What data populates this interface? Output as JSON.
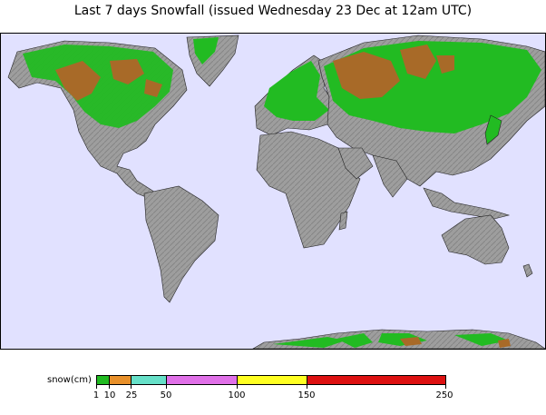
{
  "title": "Last 7 days Snowfall (issued Wednesday 23 Dec at 12am UTC)",
  "legend": {
    "label": "snow(cm)",
    "ticks": [
      "1",
      "10",
      "25",
      "50",
      "100",
      "150",
      "250"
    ],
    "colors": {
      "1-10": "#22bb22",
      "10-25": "#e8902a",
      "25-50": "#66e0c8",
      "50-100": "#e070e8",
      "100-150": "#ffff22",
      "150-250": "#dd1111"
    }
  },
  "map_colors": {
    "ocean": "#e1e1ff",
    "land": "#9e9e9e",
    "land_shade": "#7a7a7a",
    "snow_light": "#22bb22",
    "snow_heavy": "#a86a28"
  }
}
